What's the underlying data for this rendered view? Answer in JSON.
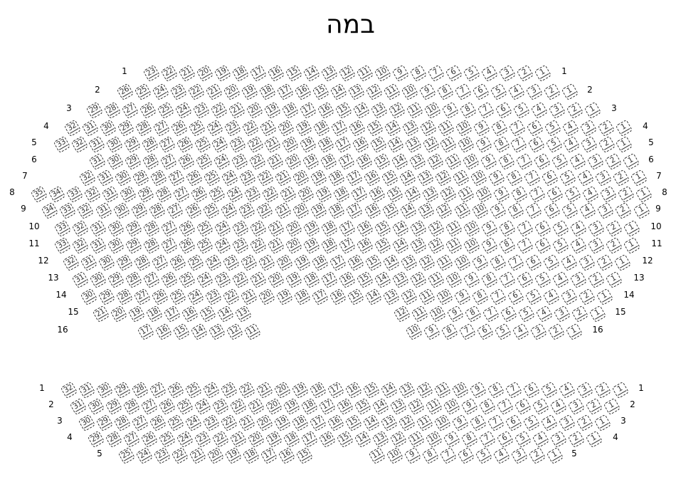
{
  "stage_label": "במה",
  "sections": [
    {
      "name": "main",
      "rows": [
        {
          "row": "1",
          "segments": [
            {
              "from": 23,
              "to": 1
            }
          ]
        },
        {
          "row": "2",
          "segments": [
            {
              "from": 26,
              "to": 1
            }
          ]
        },
        {
          "row": "3",
          "segments": [
            {
              "from": 29,
              "to": 1
            }
          ]
        },
        {
          "row": "4",
          "segments": [
            {
              "from": 32,
              "to": 1
            }
          ]
        },
        {
          "row": "5",
          "segments": [
            {
              "from": 33,
              "to": 1
            }
          ]
        },
        {
          "row": "6",
          "segments": [
            {
              "from": 31,
              "to": 1
            }
          ]
        },
        {
          "row": "7",
          "segments": [
            {
              "from": 32,
              "to": 1
            }
          ]
        },
        {
          "row": "8",
          "segments": [
            {
              "from": 35,
              "to": 1
            }
          ]
        },
        {
          "row": "9",
          "segments": [
            {
              "from": 34,
              "to": 1
            }
          ]
        },
        {
          "row": "10",
          "segments": [
            {
              "from": 33,
              "to": 1
            }
          ]
        },
        {
          "row": "11",
          "segments": [
            {
              "from": 33,
              "to": 1
            }
          ]
        },
        {
          "row": "12",
          "segments": [
            {
              "from": 32,
              "to": 1
            }
          ]
        },
        {
          "row": "13",
          "segments": [
            {
              "from": 31,
              "to": 1
            }
          ]
        },
        {
          "row": "14",
          "segments": [
            {
              "from": 30,
              "to": 1
            }
          ]
        },
        {
          "row": "15",
          "segments": [
            {
              "from": 21,
              "to": 13
            },
            {
              "from": 12,
              "to": 1
            }
          ]
        },
        {
          "row": "16",
          "segments": [
            {
              "from": 17,
              "to": 11
            },
            {
              "from": 10,
              "to": 1
            }
          ]
        }
      ]
    },
    {
      "name": "rear",
      "rows": [
        {
          "row": "1",
          "segments": [
            {
              "from": 32,
              "to": 1
            }
          ]
        },
        {
          "row": "2",
          "segments": [
            {
              "from": 31,
              "to": 1
            }
          ]
        },
        {
          "row": "3",
          "segments": [
            {
              "from": 30,
              "to": 1
            }
          ]
        },
        {
          "row": "4",
          "segments": [
            {
              "from": 29,
              "to": 1
            }
          ]
        },
        {
          "row": "5",
          "segments": [
            {
              "from": 25,
              "to": 15
            },
            {
              "from": 11,
              "to": 1
            }
          ]
        }
      ]
    }
  ]
}
